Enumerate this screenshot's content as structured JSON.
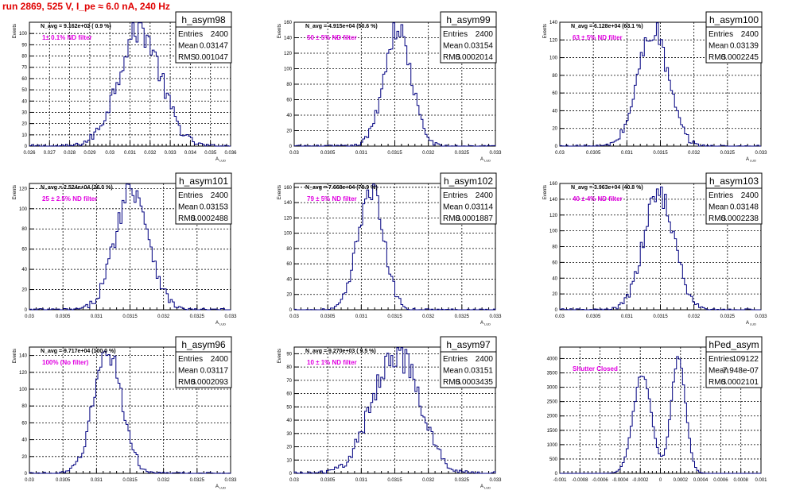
{
  "run_title": "run 2869,   525 V, I_pe ≈ 6.0 nA, 240 Hz",
  "stat_labels": {
    "entries": "Entries",
    "mean": "Mean",
    "rms": "RMS"
  },
  "colors": {
    "hist": "#000080",
    "tag": "#e000e0",
    "title": "#e00000",
    "grid": "#000000"
  },
  "chart_data": [
    {
      "type": "histogram",
      "name": "h_asym98",
      "navg": "N_avg = 9.162e+02 ( 0.9 %)",
      "tag": "1± 0.1% ND filter",
      "ylabel": "Events",
      "xlabel": "A_{LUD}",
      "xticks": [
        "0.026",
        "0.027",
        "0.028",
        "0.029",
        "0.03",
        "0.031",
        "0.032",
        "0.033",
        "0.034",
        "0.035",
        "0.036"
      ],
      "xlim": [
        0.026,
        0.036
      ],
      "ylim": [
        0,
        110
      ],
      "yticks": [
        0,
        10,
        20,
        30,
        40,
        50,
        60,
        70,
        80,
        90,
        100
      ],
      "mean": 0.03147,
      "rms": 0.001047,
      "entries": 2400,
      "peak": 104,
      "stats": {
        "entries": "2400",
        "mean": "0.03147",
        "rms": "0.001047"
      },
      "grid": true
    },
    {
      "type": "histogram",
      "name": "h_asym99",
      "navg": "N_avg = 4.915e+04 (50.6 %)",
      "tag": "50 ± 5% ND filter",
      "ylabel": "Events",
      "xlabel": "A_{LUD}",
      "xticks": [
        "0.03",
        "0.0305",
        "0.031",
        "0.0315",
        "0.032",
        "0.0325",
        "0.033"
      ],
      "xlim": [
        0.03,
        0.033
      ],
      "ylim": [
        0,
        160
      ],
      "yticks": [
        0,
        20,
        40,
        60,
        80,
        100,
        120,
        140,
        160
      ],
      "mean": 0.03154,
      "rms": 0.0002014,
      "entries": 2400,
      "peak": 152,
      "stats": {
        "entries": "2400",
        "mean": "0.03154",
        "rms": "0.0002014"
      },
      "grid": true
    },
    {
      "type": "histogram",
      "name": "h_asym100",
      "navg": "N_avg = 6.128e+04 (63.1 %)",
      "tag": "63 ± 5% ND filter",
      "ylabel": "Events",
      "xlabel": "A_{LUD}",
      "xticks": [
        "0.03",
        "0.0305",
        "0.031",
        "0.0315",
        "0.032",
        "0.0325",
        "0.033"
      ],
      "xlim": [
        0.03,
        0.033
      ],
      "ylim": [
        0,
        140
      ],
      "yticks": [
        0,
        20,
        40,
        60,
        80,
        100,
        120,
        140
      ],
      "mean": 0.03139,
      "rms": 0.0002245,
      "entries": 2400,
      "peak": 132,
      "stats": {
        "entries": "2400",
        "mean": "0.03139",
        "rms": "0.0002245"
      },
      "grid": true
    },
    {
      "type": "histogram",
      "name": "h_asym101",
      "navg": "N_avg = 2.524e+04 (26.0 %)",
      "tag": "25 ± 2.5% ND filter",
      "ylabel": "Events",
      "xlabel": "A_{LUD}",
      "xticks": [
        "0.03",
        "0.0305",
        "0.031",
        "0.0315",
        "0.032",
        "0.0325",
        "0.033"
      ],
      "xlim": [
        0.03,
        0.033
      ],
      "ylim": [
        0,
        125
      ],
      "yticks": [
        0,
        20,
        40,
        60,
        80,
        100,
        120
      ],
      "mean": 0.03153,
      "rms": 0.0002488,
      "entries": 2400,
      "peak": 122,
      "stats": {
        "entries": "2400",
        "mean": "0.03153",
        "rms": "0.0002488"
      },
      "grid": true
    },
    {
      "type": "histogram",
      "name": "h_asym102",
      "navg": "N_avg = 7.668e+04 (78.9 %)",
      "tag": "79 ± 5% ND filter",
      "ylabel": "Events",
      "xlabel": "A_{LUD}",
      "xticks": [
        "0.03",
        "0.0305",
        "0.031",
        "0.0315",
        "0.032",
        "0.0325",
        "0.033"
      ],
      "xlim": [
        0.03,
        0.033
      ],
      "ylim": [
        0,
        165
      ],
      "yticks": [
        0,
        20,
        40,
        60,
        80,
        100,
        120,
        140,
        160
      ],
      "mean": 0.03114,
      "rms": 0.0001887,
      "entries": 2400,
      "peak": 160,
      "stats": {
        "entries": "2400",
        "mean": "0.03114",
        "rms": "0.0001887"
      },
      "grid": true
    },
    {
      "type": "histogram",
      "name": "h_asym103",
      "navg": "N_avg = 3.963e+04 (40.8 %)",
      "tag": "40 ± 4% ND filter",
      "ylabel": "Events",
      "xlabel": "A_{LUD}",
      "xticks": [
        "0.03",
        "0.0305",
        "0.031",
        "0.0315",
        "0.032",
        "0.0325",
        "0.033"
      ],
      "xlim": [
        0.03,
        0.033
      ],
      "ylim": [
        0,
        160
      ],
      "yticks": [
        0,
        20,
        40,
        60,
        80,
        100,
        120,
        140,
        160
      ],
      "mean": 0.03148,
      "rms": 0.0002238,
      "entries": 2400,
      "peak": 150,
      "stats": {
        "entries": "2400",
        "mean": "0.03148",
        "rms": "0.0002238"
      },
      "grid": true
    },
    {
      "type": "histogram",
      "name": "h_asym96",
      "navg": "N_avg = 9.717e+04 (100.0 %)",
      "tag": "100% (No filter)",
      "ylabel": "Events",
      "xlabel": "A_{LUD}",
      "xticks": [
        "0.03",
        "0.0305",
        "0.031",
        "0.0315",
        "0.032",
        "0.0325",
        "0.033"
      ],
      "xlim": [
        0.03,
        0.033
      ],
      "ylim": [
        0,
        150
      ],
      "yticks": [
        0,
        20,
        40,
        60,
        80,
        100,
        120,
        140
      ],
      "mean": 0.03117,
      "rms": 0.0002093,
      "entries": 2400,
      "peak": 146,
      "stats": {
        "entries": "2400",
        "mean": "0.03117",
        "rms": "0.0002093"
      },
      "grid": true
    },
    {
      "type": "histogram",
      "name": "h_asym97",
      "navg": "N_avg = 9.270e+03 ( 9.5 %)",
      "tag": "10 ± 1% ND filter",
      "ylabel": "Events",
      "xlabel": "A_{LUD}",
      "xticks": [
        "0.03",
        "0.0305",
        "0.031",
        "0.0315",
        "0.032",
        "0.0325",
        "0.033"
      ],
      "xlim": [
        0.03,
        0.033
      ],
      "ylim": [
        0,
        95
      ],
      "yticks": [
        0,
        10,
        20,
        30,
        40,
        50,
        60,
        70,
        80,
        90
      ],
      "mean": 0.03151,
      "rms": 0.0003435,
      "entries": 2400,
      "peak": 92,
      "stats": {
        "entries": "2400",
        "mean": "0.03151",
        "rms": "0.0003435"
      },
      "grid": true
    },
    {
      "type": "histogram",
      "name": "hPed_asym",
      "navg": "",
      "tag": "Shutter Closed",
      "ylabel": "",
      "xlabel": "",
      "xticks": [
        "-0.001",
        "-0.0008",
        "-0.0006",
        "-0.0004",
        "-0.0002",
        "0",
        "0.0002",
        "0.0004",
        "0.0006",
        "0.0008",
        "0.001"
      ],
      "xlim": [
        -0.001,
        0.001
      ],
      "ylim": [
        0,
        4400
      ],
      "yticks": [
        0,
        500,
        1000,
        1500,
        2000,
        2500,
        3000,
        3500,
        4000
      ],
      "entries": 109122,
      "peaks": [
        {
          "x": -0.00018,
          "height": 3480,
          "width": 9e-05
        },
        {
          "x": 0.00018,
          "height": 4080,
          "width": 7e-05
        }
      ],
      "stats": {
        "entries": "109122",
        "mean": "7.948e-07",
        "rms": "0.0002101"
      },
      "grid": true
    }
  ]
}
